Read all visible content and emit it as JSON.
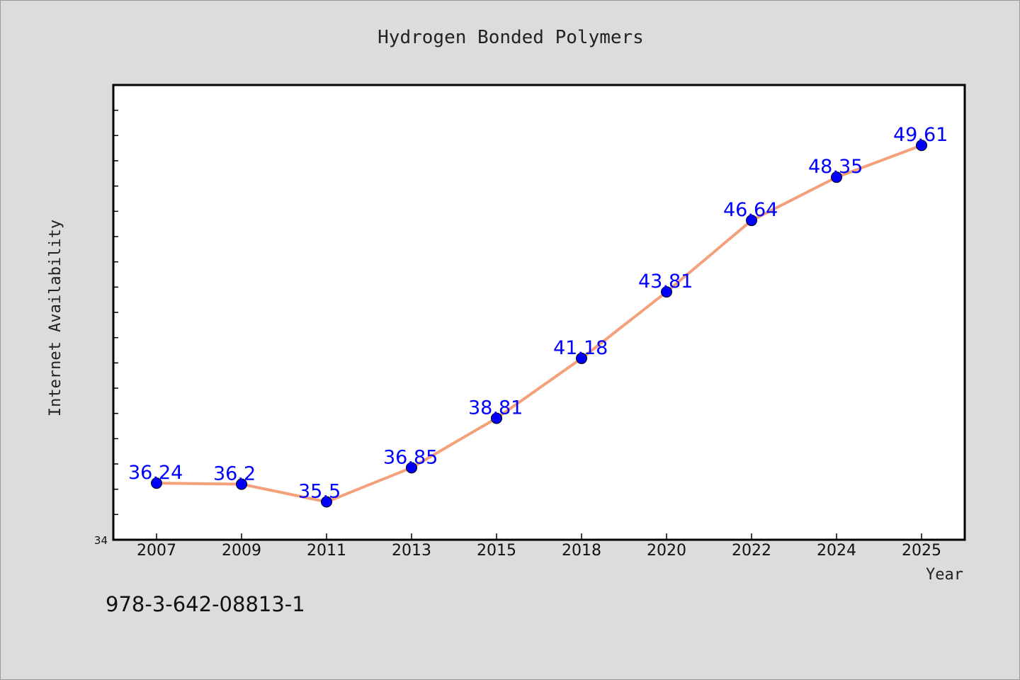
{
  "chart_data": {
    "type": "line",
    "title": "Hydrogen Bonded Polymers",
    "xlabel": "Year",
    "ylabel": "Internet Availability",
    "categories": [
      "2007",
      "2009",
      "2011",
      "2013",
      "2015",
      "2018",
      "2020",
      "2022",
      "2024",
      "2025"
    ],
    "series": [
      {
        "values": [
          36.24,
          36.2,
          35.5,
          36.85,
          38.81,
          41.18,
          43.81,
          46.64,
          48.35,
          49.61
        ]
      }
    ],
    "data_labels": [
      "36.24",
      "36.2",
      "35.5",
      "36.85",
      "38.81",
      "41.18",
      "43.81",
      "46.64",
      "48.35",
      "49.61"
    ],
    "ylim": [
      34,
      52
    ],
    "y_tick_labels": [
      "34"
    ],
    "grid": false,
    "line_color": "#f4a07a",
    "marker_color": "#0000ff",
    "label_color": "#0000ff"
  },
  "footnote": "978-3-642-08813-1"
}
